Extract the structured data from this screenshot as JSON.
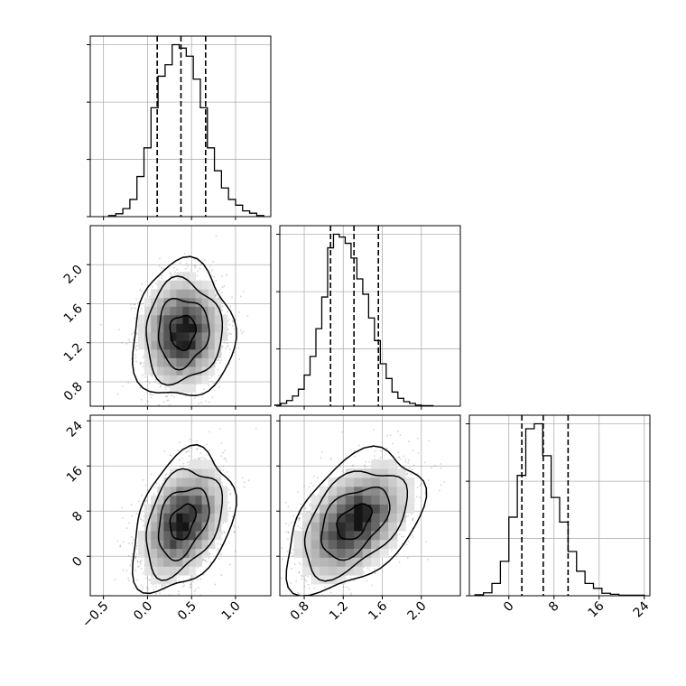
{
  "chart_data": {
    "type": "corner",
    "grid": true,
    "quantile_line_color": "#000000",
    "scatter_color": "#808080",
    "parameters": [
      {
        "index": 0,
        "range": [
          -0.65,
          1.4
        ],
        "tick_values": [
          -0.5,
          0.0,
          0.5,
          1.0
        ],
        "tick_labels": [
          "−0.5",
          "0.0",
          "0.5",
          "1.0"
        ],
        "quantiles": [
          0.11,
          0.38,
          0.66
        ],
        "histogram": {
          "bin_edges": [
            -0.44,
            -0.36,
            -0.28,
            -0.2,
            -0.12,
            -0.04,
            0.04,
            0.12,
            0.2,
            0.28,
            0.36,
            0.44,
            0.52,
            0.6,
            0.68,
            0.76,
            0.84,
            0.92,
            1.0,
            1.08,
            1.16,
            1.24,
            1.32
          ],
          "counts": [
            2,
            5,
            14,
            30,
            70,
            120,
            190,
            245,
            265,
            300,
            294,
            280,
            240,
            190,
            120,
            80,
            50,
            30,
            20,
            10,
            6,
            2
          ]
        }
      },
      {
        "index": 1,
        "range": [
          0.55,
          2.4
        ],
        "tick_values": [
          0.8,
          1.2,
          1.6,
          2.0
        ],
        "tick_labels": [
          "0.8",
          "1.2",
          "1.6",
          "2.0"
        ],
        "quantiles": [
          1.07,
          1.31,
          1.56
        ],
        "histogram": {
          "bin_edges": [
            0.5,
            0.56,
            0.62,
            0.68,
            0.74,
            0.8,
            0.86,
            0.92,
            0.98,
            1.04,
            1.1,
            1.16,
            1.22,
            1.28,
            1.34,
            1.4,
            1.46,
            1.52,
            1.58,
            1.64,
            1.7,
            1.76,
            1.82,
            1.88,
            1.94,
            2.0,
            2.06,
            2.12
          ],
          "counts": [
            2,
            5,
            10,
            18,
            30,
            55,
            88,
            137,
            193,
            280,
            304,
            299,
            288,
            262,
            225,
            198,
            156,
            116,
            75,
            49,
            25,
            14,
            8,
            5,
            2,
            1,
            1
          ]
        }
      },
      {
        "index": 2,
        "range": [
          -7.0,
          25.0
        ],
        "tick_values": [
          0,
          8,
          16,
          24
        ],
        "tick_labels": [
          "0",
          "8",
          "16",
          "24"
        ],
        "quantiles": [
          2.3,
          6.1,
          10.5
        ],
        "histogram": {
          "bin_edges": [
            -6,
            -4.5,
            -3,
            -1.5,
            0,
            1.5,
            3,
            4.5,
            6,
            7.5,
            9,
            10.5,
            12,
            13.5,
            15,
            16.5,
            18,
            19.5,
            21,
            22.5,
            24
          ],
          "counts": [
            2,
            6,
            25,
            70,
            160,
            245,
            340,
            350,
            285,
            200,
            150,
            90,
            50,
            25,
            15,
            5,
            3,
            1,
            1,
            1
          ]
        }
      }
    ],
    "pairs": [
      {
        "x_param": 0,
        "y_param": 1,
        "center": [
          0.4,
          1.31
        ],
        "sigma": [
          0.23,
          0.28
        ],
        "correlation": 0.05
      },
      {
        "x_param": 0,
        "y_param": 2,
        "center": [
          0.4,
          6.1
        ],
        "sigma": [
          0.23,
          5.0
        ],
        "correlation": 0.35
      },
      {
        "x_param": 1,
        "y_param": 2,
        "center": [
          1.31,
          6.1
        ],
        "sigma": [
          0.28,
          5.0
        ],
        "correlation": 0.45
      }
    ],
    "contour_levels_sigma": [
      0.5,
      1.0,
      1.5,
      2.0
    ]
  }
}
